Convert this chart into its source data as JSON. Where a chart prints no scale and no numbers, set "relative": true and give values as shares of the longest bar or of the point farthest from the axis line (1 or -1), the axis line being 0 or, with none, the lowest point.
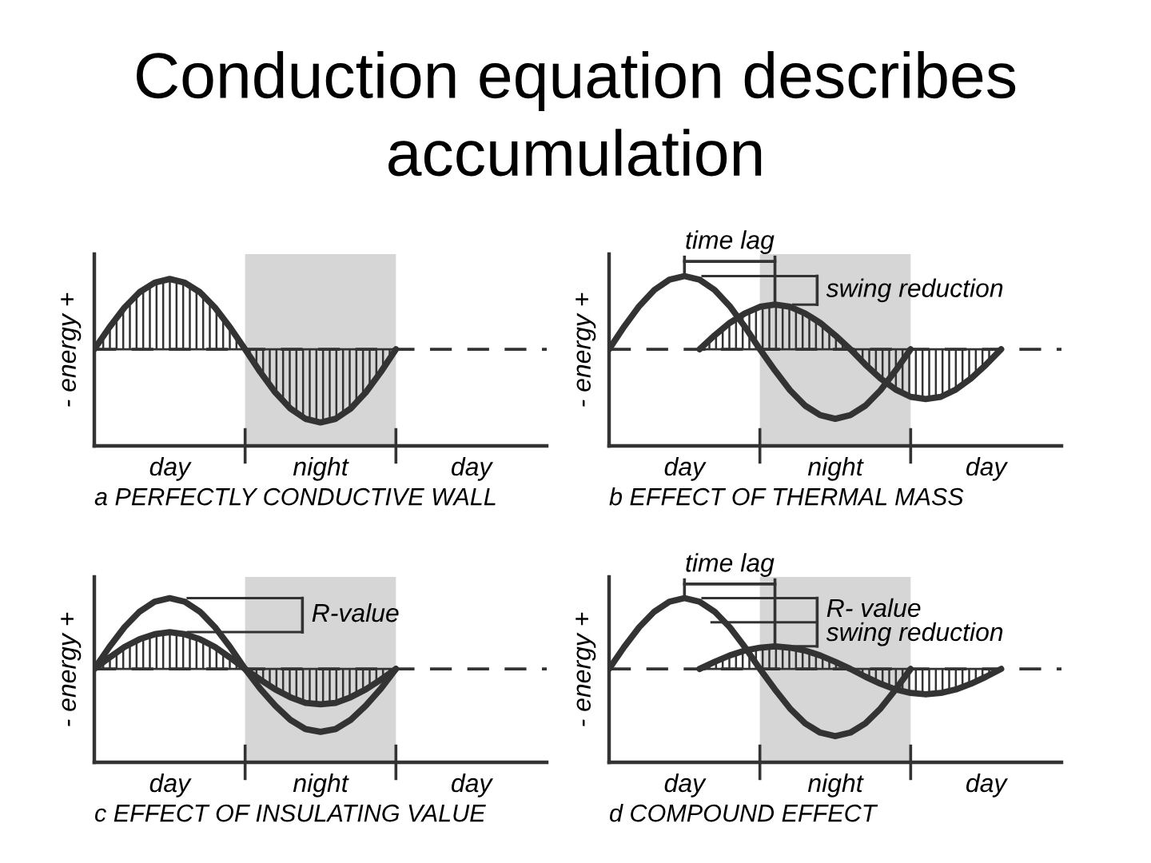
{
  "chart_data": [
    {
      "type": "area",
      "title": "Conduction equation describes\naccumulation",
      "xlabel": "a PERFECTLY CONDUCTIVE WALL",
      "ylabel": "- energy +",
      "relative": true,
      "tick_labels": "x",
      "categories": [
        null,
        null,
        null,
        null,
        null,
        "day",
        null,
        null,
        null,
        null,
        null,
        null,
        null,
        null,
        null,
        "night",
        null,
        null,
        null,
        null,
        null,
        null,
        null,
        null,
        null,
        "day",
        null,
        null,
        null,
        null,
        null
      ],
      "ref_lines": [
        {
          "axis": "y",
          "value": 0,
          "color": "#333333",
          "line_style": "dashed"
        }
      ],
      "series": [
        {
          "type": "area",
          "color": "#333333",
          "values": [
            0,
            0.3,
            0.57,
            0.78,
            0.91,
            0.96,
            0.91,
            0.78,
            0.57,
            0.3,
            0,
            -0.31,
            -0.59,
            -0.81,
            -0.95,
            -1,
            -0.95,
            -0.81,
            -0.59,
            -0.31,
            0,
            null,
            null,
            null,
            null,
            null,
            null,
            null,
            null,
            null,
            null
          ]
        }
      ]
    },
    {
      "type": "line",
      "xlabel": "b EFFECT OF THERMAL MASS",
      "ylabel": "- energy +",
      "relative": true,
      "tick_labels": "x",
      "annotations": [
        "time lag",
        "swing reduction"
      ],
      "categories": [
        null,
        null,
        null,
        null,
        null,
        "day",
        null,
        null,
        null,
        null,
        null,
        null,
        null,
        null,
        null,
        "night",
        null,
        null,
        null,
        null,
        null,
        null,
        null,
        null,
        null,
        "day",
        null,
        null,
        null,
        null,
        null
      ],
      "ref_lines": [
        {
          "axis": "y",
          "value": 0,
          "color": "#333333",
          "line_style": "dashed"
        }
      ],
      "series": [
        {
          "type": "area",
          "color": "#333333",
          "values": [
            null,
            null,
            null,
            null,
            null,
            null,
            0,
            0.19,
            0.36,
            0.49,
            0.58,
            0.61,
            0.58,
            0.49,
            0.36,
            0.19,
            0,
            -0.21,
            -0.4,
            -0.55,
            -0.65,
            -0.68,
            -0.65,
            -0.55,
            -0.4,
            -0.21,
            0,
            null,
            null,
            null,
            null
          ]
        },
        {
          "color": "#333333",
          "values": [
            0,
            0.31,
            0.59,
            0.81,
            0.95,
            1,
            0.95,
            0.81,
            0.59,
            0.31,
            0,
            -0.29,
            -0.56,
            -0.77,
            -0.9,
            -0.95,
            -0.9,
            -0.77,
            -0.56,
            -0.29,
            0,
            null,
            null,
            null,
            null,
            null,
            null,
            null,
            null,
            null,
            null
          ]
        }
      ]
    },
    {
      "type": "line",
      "xlabel": "c EFFECT OF INSULATING VALUE",
      "ylabel": "- energy +",
      "relative": true,
      "tick_labels": "x",
      "annotations": [
        "R-value"
      ],
      "categories": [
        null,
        null,
        null,
        null,
        null,
        "day",
        null,
        null,
        null,
        null,
        null,
        null,
        null,
        null,
        null,
        "night",
        null,
        null,
        null,
        null,
        null,
        null,
        null,
        null,
        null,
        "day",
        null,
        null,
        null,
        null,
        null
      ],
      "ref_lines": [
        {
          "axis": "y",
          "value": 0,
          "color": "#333333",
          "line_style": "dashed"
        }
      ],
      "series": [
        {
          "type": "area",
          "color": "#333333",
          "values": [
            0,
            0.16,
            0.31,
            0.42,
            0.49,
            0.52,
            0.49,
            0.42,
            0.31,
            0.16,
            0,
            -0.15,
            -0.29,
            -0.4,
            -0.48,
            -0.5,
            -0.48,
            -0.4,
            -0.29,
            -0.15,
            0,
            null,
            null,
            null,
            null,
            null,
            null,
            null,
            null,
            null,
            null
          ]
        },
        {
          "color": "#333333",
          "values": [
            0,
            0.31,
            0.59,
            0.81,
            0.95,
            1,
            0.95,
            0.81,
            0.59,
            0.31,
            0,
            -0.28,
            -0.52,
            -0.72,
            -0.85,
            -0.89,
            -0.85,
            -0.72,
            -0.52,
            -0.28,
            0,
            null,
            null,
            null,
            null,
            null,
            null,
            null,
            null,
            null,
            null
          ]
        }
      ]
    },
    {
      "type": "line",
      "xlabel": "d COMPOUND EFFECT",
      "ylabel": "- energy +",
      "relative": true,
      "tick_labels": "x",
      "annotations": [
        "time lag",
        "R- value",
        "swing reduction"
      ],
      "categories": [
        null,
        null,
        null,
        null,
        null,
        "day",
        null,
        null,
        null,
        null,
        null,
        null,
        null,
        null,
        null,
        "night",
        null,
        null,
        null,
        null,
        null,
        null,
        null,
        null,
        null,
        "day",
        null,
        null,
        null,
        null,
        null
      ],
      "ref_lines": [
        {
          "axis": "y",
          "value": 0,
          "color": "#333333",
          "line_style": "dashed"
        }
      ],
      "series": [
        {
          "type": "area",
          "color": "#333333",
          "values": [
            null,
            null,
            null,
            null,
            null,
            null,
            0,
            0.1,
            0.19,
            0.26,
            0.3,
            0.32,
            0.3,
            0.26,
            0.19,
            0.1,
            0,
            -0.11,
            -0.21,
            -0.29,
            -0.34,
            -0.36,
            -0.34,
            -0.29,
            -0.21,
            -0.11,
            0,
            null,
            null,
            null,
            null
          ]
        },
        {
          "color": "#333333",
          "values": [
            0,
            0.31,
            0.59,
            0.81,
            0.95,
            1,
            0.95,
            0.81,
            0.59,
            0.31,
            0,
            -0.29,
            -0.56,
            -0.77,
            -0.9,
            -0.95,
            -0.9,
            -0.77,
            -0.56,
            -0.29,
            0,
            null,
            null,
            null,
            null,
            null,
            null,
            null,
            null,
            null,
            null
          ]
        }
      ]
    }
  ]
}
